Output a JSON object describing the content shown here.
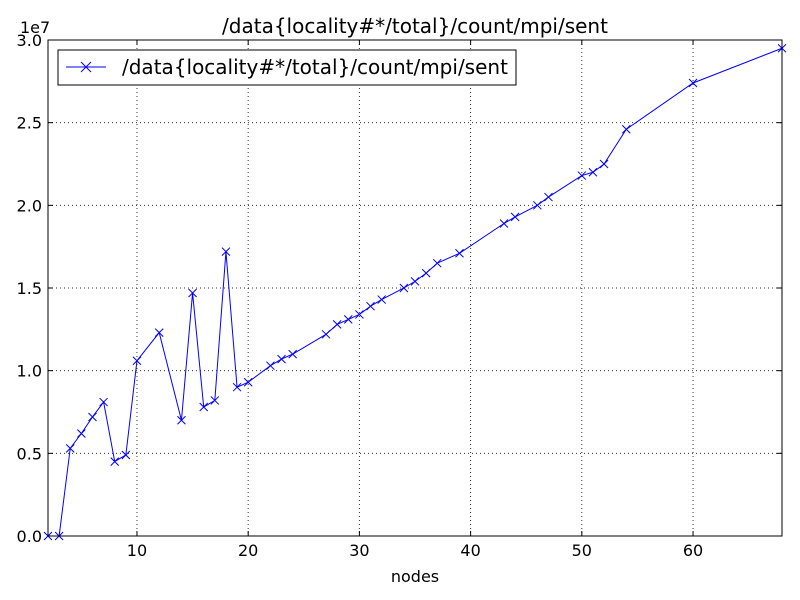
{
  "chart_data": {
    "type": "line",
    "title": "/data{locality#*/total}/count/mpi/sent",
    "xlabel": "nodes",
    "ylabel": "",
    "y_offset_label": "1e7",
    "xlim": [
      2,
      68
    ],
    "ylim": [
      0,
      30000000
    ],
    "xticks": [
      10,
      20,
      30,
      40,
      50,
      60
    ],
    "yticks": [
      0,
      5000000,
      10000000,
      15000000,
      20000000,
      25000000,
      30000000
    ],
    "xtick_labels": [
      "10",
      "20",
      "30",
      "40",
      "50",
      "60"
    ],
    "ytick_labels": [
      "0.0",
      "0.5",
      "1.0",
      "1.5",
      "2.0",
      "2.5",
      "3.0"
    ],
    "grid": true,
    "legend_position": "top-left",
    "colors": {
      "series": "#0000ff",
      "axes": "#000000",
      "background": "#ffffff"
    },
    "series": [
      {
        "name": "/data{locality#*/total}/count/mpi/sent",
        "marker": "x",
        "x": [
          2,
          3,
          4,
          5,
          6,
          7,
          8,
          9,
          10,
          12,
          14,
          15,
          16,
          17,
          18,
          19,
          20,
          22,
          23,
          24,
          27,
          28,
          29,
          30,
          31,
          32,
          34,
          35,
          36,
          37,
          39,
          43,
          44,
          46,
          47,
          50,
          51,
          52,
          54,
          60,
          68
        ],
        "y": [
          0,
          0,
          5300000,
          6200000,
          7200000,
          8100000,
          4500000,
          4900000,
          10600000,
          12300000,
          7000000,
          14700000,
          7800000,
          8200000,
          17200000,
          9000000,
          9300000,
          10300000,
          10700000,
          11000000,
          12200000,
          12800000,
          13100000,
          13400000,
          13900000,
          14300000,
          15000000,
          15400000,
          15900000,
          16500000,
          17100000,
          18900000,
          19300000,
          20000000,
          20500000,
          21800000,
          22000000,
          22500000,
          24600000,
          27400000,
          29500000
        ]
      }
    ]
  }
}
